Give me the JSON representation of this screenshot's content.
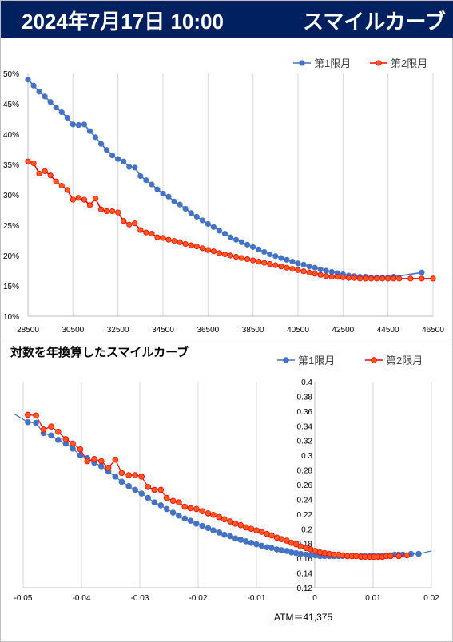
{
  "header": {
    "date": "2024年7月17日 10:00",
    "title": "スマイルカーブ"
  },
  "colors": {
    "banner": "#002060",
    "series1": "#4472c4",
    "series2_line": "#ff0000",
    "series2_fill": "#ff5a1e"
  },
  "chart2_title": "対数を年換算したスマイルカーブ",
  "atm_label": "ATM＝41,375",
  "chart_data": [
    {
      "type": "line",
      "title": "",
      "xlabel": "",
      "ylabel": "",
      "xlim": [
        28500,
        46500
      ],
      "ylim": [
        0.1,
        0.5
      ],
      "x_ticks": [
        "28500",
        "30500",
        "32500",
        "34500",
        "36500",
        "38500",
        "40500",
        "42500",
        "44500",
        "46500"
      ],
      "y_ticks": [
        "10%",
        "15%",
        "20%",
        "25%",
        "30%",
        "35%",
        "40%",
        "45%",
        "50%"
      ],
      "grid": "vertical",
      "legend": "top-right",
      "series": [
        {
          "name": "第1限月",
          "x": [
            28500,
            28750,
            29000,
            29250,
            29500,
            29750,
            30000,
            30250,
            30500,
            30750,
            31000,
            31250,
            31500,
            31750,
            32000,
            32250,
            32500,
            32750,
            33000,
            33250,
            33500,
            33750,
            34000,
            34250,
            34500,
            34750,
            35000,
            35250,
            35500,
            35750,
            36000,
            36250,
            36500,
            36750,
            37000,
            37250,
            37500,
            37750,
            38000,
            38250,
            38500,
            38750,
            39000,
            39250,
            39500,
            39750,
            40000,
            40250,
            40500,
            40750,
            41000,
            41250,
            41500,
            41750,
            42000,
            42250,
            42500,
            42750,
            43000,
            43250,
            43500,
            43750,
            44000,
            44250,
            44500,
            44750,
            46000
          ],
          "y": [
            0.49,
            0.48,
            0.47,
            0.462,
            0.453,
            0.444,
            0.436,
            0.427,
            0.416,
            0.415,
            0.416,
            0.405,
            0.395,
            0.384,
            0.374,
            0.365,
            0.359,
            0.355,
            0.346,
            0.345,
            0.331,
            0.324,
            0.317,
            0.309,
            0.302,
            0.297,
            0.289,
            0.284,
            0.277,
            0.27,
            0.264,
            0.258,
            0.252,
            0.247,
            0.241,
            0.236,
            0.23,
            0.226,
            0.222,
            0.218,
            0.214,
            0.21,
            0.206,
            0.202,
            0.199,
            0.196,
            0.193,
            0.19,
            0.187,
            0.185,
            0.182,
            0.18,
            0.177,
            0.175,
            0.173,
            0.171,
            0.169,
            0.167,
            0.166,
            0.165,
            0.165,
            0.164,
            0.164,
            0.164,
            0.164,
            0.165,
            0.172
          ]
        },
        {
          "name": "第2限月",
          "x": [
            28500,
            28750,
            29000,
            29250,
            29500,
            29750,
            30000,
            30250,
            30500,
            30750,
            31000,
            31250,
            31500,
            31750,
            32000,
            32250,
            32500,
            32750,
            33000,
            33250,
            33500,
            33750,
            34000,
            34250,
            34500,
            34750,
            35000,
            35250,
            35500,
            35750,
            36000,
            36250,
            36500,
            36750,
            37000,
            37250,
            37500,
            37750,
            38000,
            38250,
            38500,
            38750,
            39000,
            39250,
            39500,
            39750,
            40000,
            40250,
            40500,
            40750,
            41000,
            41250,
            41500,
            41750,
            42000,
            42250,
            42500,
            42750,
            43000,
            43250,
            43500,
            43750,
            44000,
            44250,
            44500,
            44750,
            45000,
            45500,
            46000,
            46500
          ],
          "y": [
            0.355,
            0.352,
            0.335,
            0.339,
            0.332,
            0.322,
            0.315,
            0.308,
            0.292,
            0.295,
            0.292,
            0.283,
            0.294,
            0.276,
            0.273,
            0.273,
            0.271,
            0.257,
            0.251,
            0.253,
            0.242,
            0.238,
            0.236,
            0.23,
            0.229,
            0.226,
            0.224,
            0.222,
            0.219,
            0.217,
            0.215,
            0.212,
            0.209,
            0.207,
            0.204,
            0.202,
            0.2,
            0.198,
            0.196,
            0.194,
            0.192,
            0.19,
            0.188,
            0.186,
            0.184,
            0.182,
            0.18,
            0.178,
            0.176,
            0.174,
            0.172,
            0.17,
            0.168,
            0.166,
            0.165,
            0.165,
            0.164,
            0.163,
            0.163,
            0.162,
            0.162,
            0.162,
            0.162,
            0.162,
            0.162,
            0.162,
            0.162,
            0.162,
            0.162,
            0.162
          ]
        }
      ]
    },
    {
      "type": "scatter",
      "title": "対数を年換算したスマイルカーブ",
      "xlabel": "",
      "ylabel": "",
      "xlim": [
        -0.05,
        0.02
      ],
      "ylim": [
        0.12,
        0.4
      ],
      "x_ticks": [
        "-0.05",
        "-0.04",
        "-0.03",
        "-0.02",
        "-0.01",
        "0",
        "0.01",
        "0.02"
      ],
      "y_ticks": [
        "0.12",
        "0.14",
        "0.16",
        "0.18",
        "0.2",
        "0.22",
        "0.24",
        "0.26",
        "0.28",
        "0.3",
        "0.32",
        "0.34",
        "0.36",
        "0.38",
        "0.4"
      ],
      "grid": "vertical",
      "legend": "top-right",
      "series": [
        {
          "name": "第1限月",
          "x": [
            -0.0515,
            -0.0492,
            -0.0478,
            -0.0465,
            -0.0452,
            -0.044,
            -0.0427,
            -0.0415,
            -0.0402,
            -0.039,
            -0.0378,
            -0.0366,
            -0.0354,
            -0.0342,
            -0.0331,
            -0.0319,
            -0.0308,
            -0.0297,
            -0.0286,
            -0.0275,
            -0.0264,
            -0.0254,
            -0.0243,
            -0.0233,
            -0.0223,
            -0.0213,
            -0.0203,
            -0.0193,
            -0.0183,
            -0.0174,
            -0.0164,
            -0.0155,
            -0.0145,
            -0.0136,
            -0.0127,
            -0.0118,
            -0.0109,
            -0.01,
            -0.0091,
            -0.0082,
            -0.0074,
            -0.0065,
            -0.0057,
            -0.0048,
            -0.004,
            -0.0032,
            -0.0024,
            -0.0015,
            -0.0007,
            0.0001,
            0.0009,
            0.0017,
            0.0025,
            0.0033,
            0.0041,
            0.0048,
            0.0056,
            0.0064,
            0.0071,
            0.0079,
            0.0086,
            0.0094,
            0.0101,
            0.0109,
            0.0116,
            0.0123,
            0.013,
            0.0137,
            0.0144,
            0.0151,
            0.0165,
            0.0178,
            0.02
          ],
          "y": [
            0.356,
            0.345,
            0.344,
            0.33,
            0.327,
            0.321,
            0.316,
            0.309,
            0.3,
            0.296,
            0.29,
            0.285,
            0.278,
            0.271,
            0.264,
            0.258,
            0.253,
            0.248,
            0.242,
            0.236,
            0.232,
            0.227,
            0.222,
            0.218,
            0.214,
            0.211,
            0.207,
            0.204,
            0.201,
            0.198,
            0.195,
            0.192,
            0.19,
            0.187,
            0.185,
            0.183,
            0.181,
            0.179,
            0.177,
            0.175,
            0.174,
            0.172,
            0.171,
            0.17,
            0.168,
            0.167,
            0.166,
            0.165,
            0.164,
            0.164,
            0.163,
            0.163,
            0.163,
            0.163,
            0.163,
            0.163,
            0.163,
            0.163,
            0.163,
            0.163,
            0.163,
            0.163,
            0.163,
            0.163,
            0.163,
            0.164,
            0.164,
            0.165,
            0.165,
            0.165,
            0.166,
            0.166,
            0.17
          ]
        },
        {
          "name": "第2限月",
          "x": [
            -0.0492,
            -0.0478,
            -0.0465,
            -0.0452,
            -0.044,
            -0.0427,
            -0.0415,
            -0.0402,
            -0.039,
            -0.0378,
            -0.0366,
            -0.0354,
            -0.0342,
            -0.0331,
            -0.0319,
            -0.0308,
            -0.0297,
            -0.0286,
            -0.0275,
            -0.0264,
            -0.0254,
            -0.0243,
            -0.0233,
            -0.0223,
            -0.0213,
            -0.0203,
            -0.0193,
            -0.0183,
            -0.0174,
            -0.0164,
            -0.0155,
            -0.0145,
            -0.0136,
            -0.0127,
            -0.0118,
            -0.0109,
            -0.01,
            -0.0091,
            -0.0082,
            -0.0074,
            -0.0065,
            -0.0057,
            -0.0048,
            -0.004,
            -0.0032,
            -0.0024,
            -0.0015,
            -0.0007,
            0.0001,
            0.0009,
            0.0017,
            0.0025,
            0.0033,
            0.0041,
            0.0048,
            0.0056,
            0.0064,
            0.0071,
            0.0079,
            0.0086,
            0.0094,
            0.0101,
            0.0109,
            0.0116,
            0.0123,
            0.013,
            0.0144,
            0.0158
          ],
          "y": [
            0.355,
            0.354,
            0.335,
            0.339,
            0.332,
            0.322,
            0.316,
            0.308,
            0.292,
            0.295,
            0.292,
            0.283,
            0.294,
            0.276,
            0.273,
            0.273,
            0.271,
            0.257,
            0.253,
            0.253,
            0.242,
            0.238,
            0.236,
            0.23,
            0.228,
            0.227,
            0.224,
            0.221,
            0.219,
            0.216,
            0.213,
            0.21,
            0.207,
            0.205,
            0.202,
            0.2,
            0.198,
            0.196,
            0.193,
            0.191,
            0.188,
            0.186,
            0.184,
            0.181,
            0.179,
            0.176,
            0.174,
            0.172,
            0.17,
            0.168,
            0.167,
            0.166,
            0.165,
            0.165,
            0.164,
            0.163,
            0.163,
            0.163,
            0.162,
            0.162,
            0.162,
            0.162,
            0.162,
            0.162,
            0.163,
            0.163,
            0.163,
            0.164
          ]
        }
      ]
    }
  ]
}
